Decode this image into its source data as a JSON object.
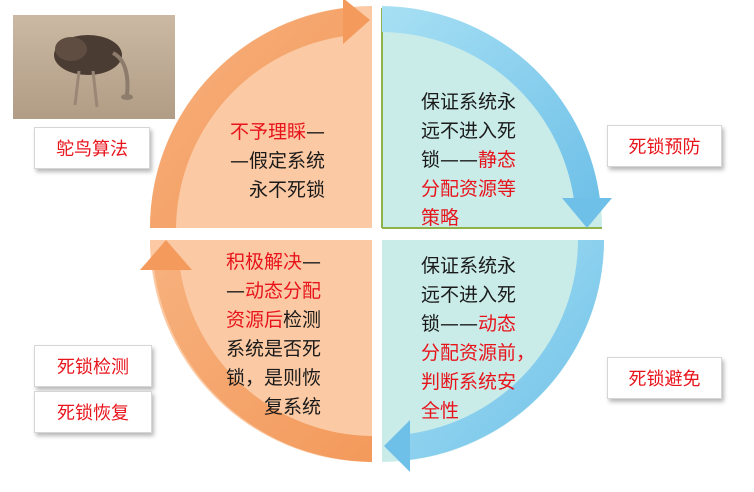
{
  "photo": {
    "icon": "ostrich-photo"
  },
  "labels": {
    "ostrich_algorithm": "鸵鸟算法",
    "prevention": "死锁预防",
    "detection": "死锁检测",
    "recovery": "死锁恢复",
    "avoidance": "死锁避免"
  },
  "quadrants": {
    "top_left": {
      "lines": [
        [
          {
            "t": "不予理睬",
            "red": true
          },
          {
            "t": "—",
            "red": false
          }
        ],
        [
          {
            "t": "—假定系统",
            "red": false
          }
        ],
        [
          {
            "t": "永不死锁",
            "red": false
          }
        ]
      ]
    },
    "top_right": {
      "lines": [
        [
          {
            "t": "保证系统永",
            "red": false
          }
        ],
        [
          {
            "t": "远不进入死",
            "red": false
          }
        ],
        [
          {
            "t": "锁——",
            "red": false
          },
          {
            "t": "静态",
            "red": true
          }
        ],
        [
          {
            "t": "分配资源等",
            "red": true
          }
        ],
        [
          {
            "t": "策略",
            "red": true
          }
        ]
      ]
    },
    "bottom_left": {
      "lines": [
        [
          {
            "t": "积极解决",
            "red": true
          },
          {
            "t": "—",
            "red": false
          }
        ],
        [
          {
            "t": "—",
            "red": false
          },
          {
            "t": "动态分配",
            "red": true
          }
        ],
        [
          {
            "t": "资源后",
            "red": true
          },
          {
            "t": "检测",
            "red": false
          }
        ],
        [
          {
            "t": "系统是否死",
            "red": false
          }
        ],
        [
          {
            "t": "锁，是则恢",
            "red": false
          }
        ],
        [
          {
            "t": "复系统",
            "red": false
          }
        ]
      ]
    },
    "bottom_right": {
      "lines": [
        [
          {
            "t": "保证系统永",
            "red": false
          }
        ],
        [
          {
            "t": "远不进入死",
            "red": false
          }
        ],
        [
          {
            "t": "锁——",
            "red": false
          },
          {
            "t": "动态",
            "red": true
          }
        ],
        [
          {
            "t": "分配资源前，",
            "red": true
          }
        ],
        [
          {
            "t": "判断系统安",
            "red": true
          }
        ],
        [
          {
            "t": "全性",
            "red": true
          }
        ]
      ]
    }
  },
  "colors": {
    "orange_fill": "#fbc9a3",
    "orange_arrow": "#f5a66f",
    "blue_fill": "#c9ece9",
    "blue_arrow": "#8fd0ee",
    "text_red": "#e8141c",
    "divider_green": "#8fb14a"
  }
}
